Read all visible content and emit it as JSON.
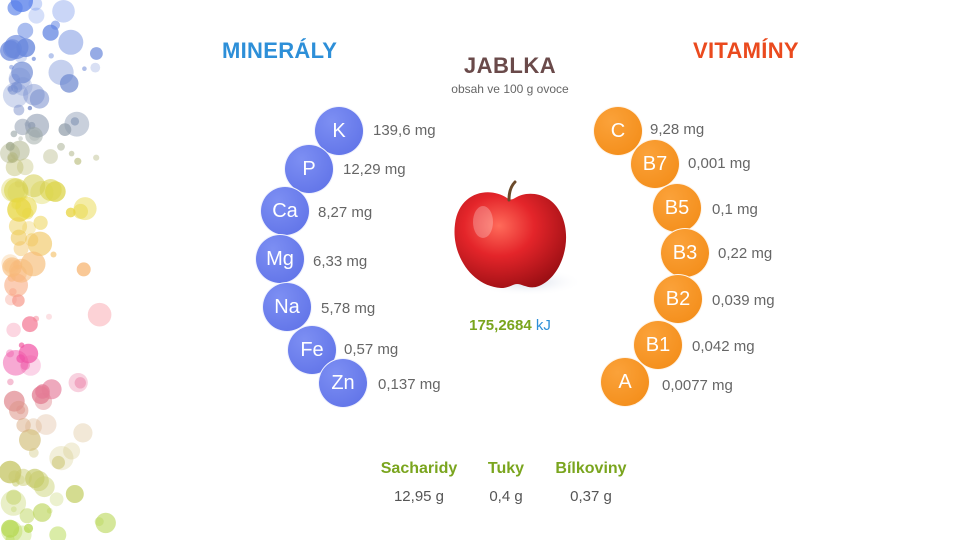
{
  "title": "JABLKA",
  "subtitle": "obsah ve 100 g ovoce",
  "minerals": {
    "title": "MINERÁLY",
    "items": [
      {
        "symbol": "K",
        "value": "139,6 mg"
      },
      {
        "symbol": "P",
        "value": "12,29 mg"
      },
      {
        "symbol": "Ca",
        "value": "8,27 mg"
      },
      {
        "symbol": "Mg",
        "value": "6,33 mg"
      },
      {
        "symbol": "Na",
        "value": "5,78 mg"
      },
      {
        "symbol": "Fe",
        "value": "0,57 mg"
      },
      {
        "symbol": "Zn",
        "value": "0,137 mg"
      }
    ]
  },
  "vitamins": {
    "title": "VITAMÍNY",
    "items": [
      {
        "symbol": "C",
        "value": "9,28 mg"
      },
      {
        "symbol": "B7",
        "value": "0,001 mg"
      },
      {
        "symbol": "B5",
        "value": "0,1 mg"
      },
      {
        "symbol": "B3",
        "value": "0,22 mg"
      },
      {
        "symbol": "B2",
        "value": "0,039 mg"
      },
      {
        "symbol": "B1",
        "value": "0,042 mg"
      },
      {
        "symbol": "A",
        "value": "0,0077 mg"
      }
    ]
  },
  "energy": {
    "value": "175,2684",
    "unit": "kJ"
  },
  "macros": [
    {
      "label": "Sacharidy",
      "value": "12,95 g"
    },
    {
      "label": "Tuky",
      "value": "0,4 g"
    },
    {
      "label": "Bílkoviny",
      "value": "0,37 g"
    }
  ],
  "colors": {
    "minerals_title": "#2d8fd8",
    "vitamins_title": "#ea4a1e",
    "mineral_circle": "#6a7cee",
    "vitamin_circle": "#f49523",
    "macro_label": "#7aa51e",
    "energy_value": "#7aa51e"
  },
  "icons": {
    "fruit": "apple-icon",
    "decoration": "bokeh-decoration"
  }
}
